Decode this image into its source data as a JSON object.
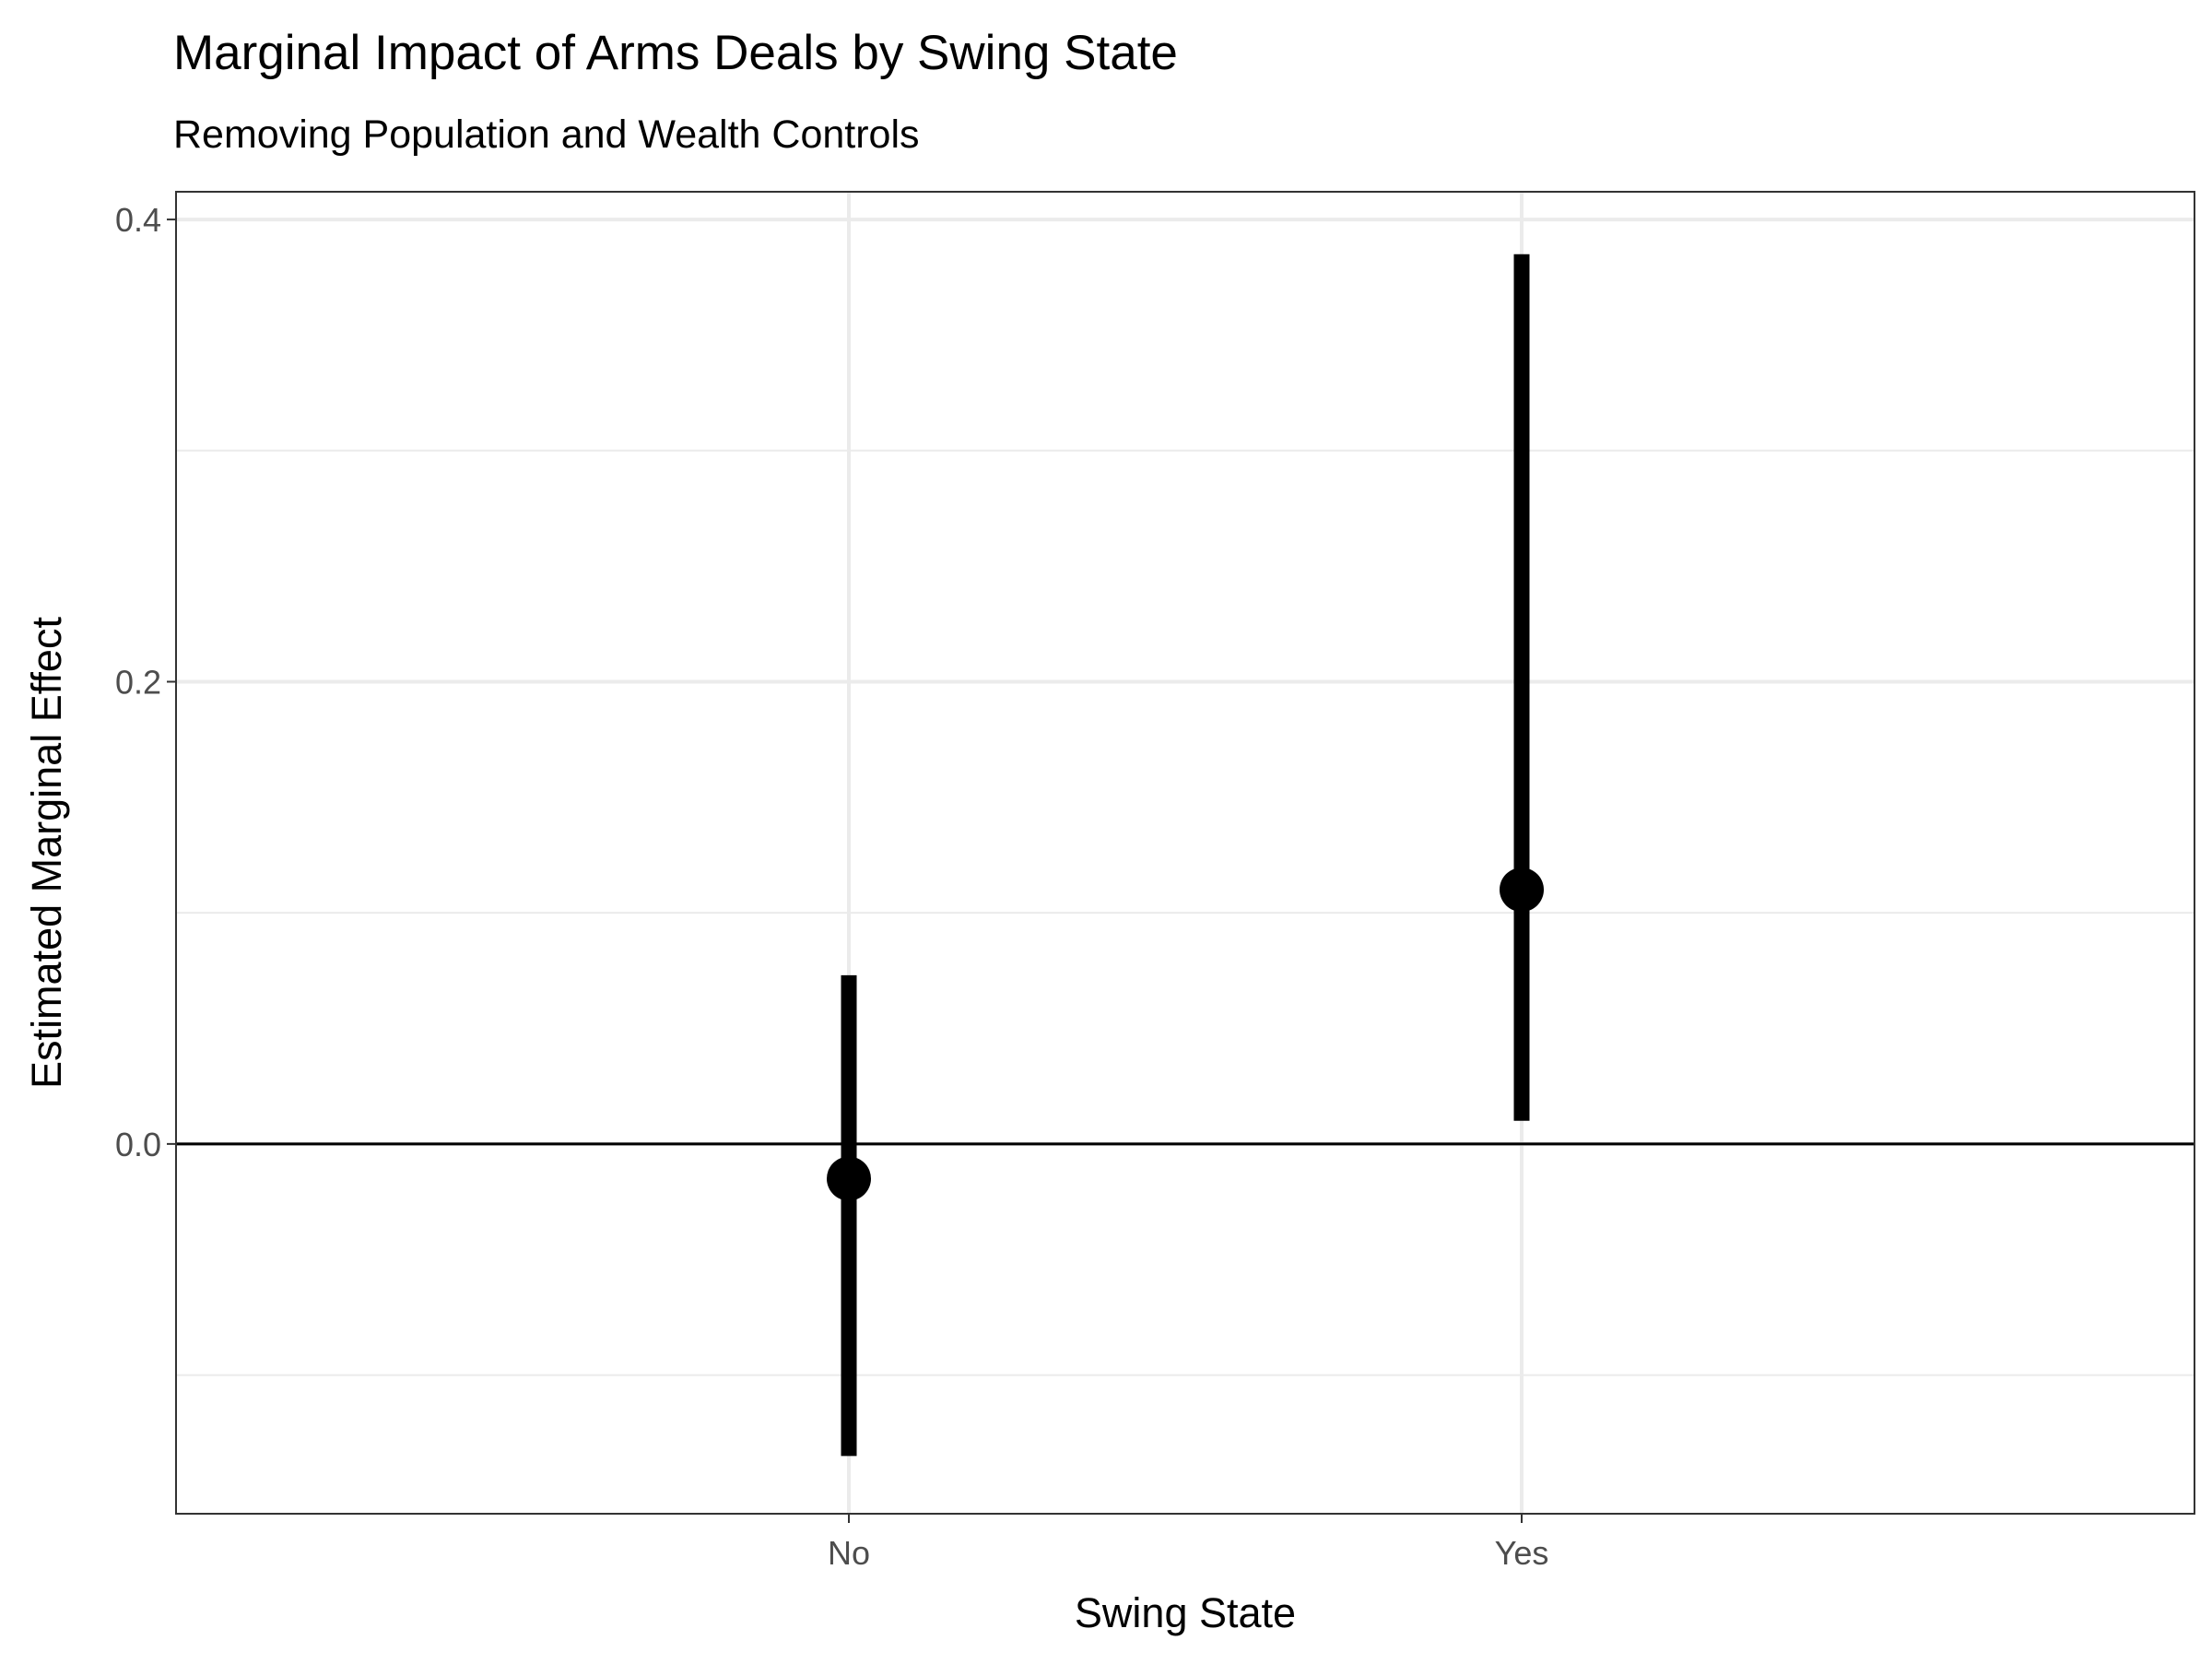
{
  "chart_data": {
    "type": "scatter",
    "title": "Marginal Impact of Arms Deals by Swing State",
    "subtitle": "Removing Population and Wealth Controls",
    "xlabel": "Swing State",
    "ylabel": "Estimated Marginal Effect",
    "categories": [
      "No",
      "Yes"
    ],
    "estimates": [
      -0.015,
      0.11
    ],
    "ci_lower": [
      -0.135,
      0.01
    ],
    "ci_upper": [
      0.073,
      0.385
    ],
    "ylim": [
      -0.16,
      0.412
    ],
    "y_ticks": [
      0.0,
      0.2,
      0.4
    ],
    "y_tick_labels": [
      "0.0",
      "0.2",
      "0.4"
    ],
    "y_minor_gridlines": [
      -0.1,
      0.1,
      0.3
    ],
    "reference_line": 0,
    "grid": true,
    "legend": "none",
    "colors": {
      "point": "#000000",
      "errorbar": "#000000",
      "grid": "#ebebeb",
      "panel_border": "#333333",
      "reference_line": "#000000"
    }
  }
}
